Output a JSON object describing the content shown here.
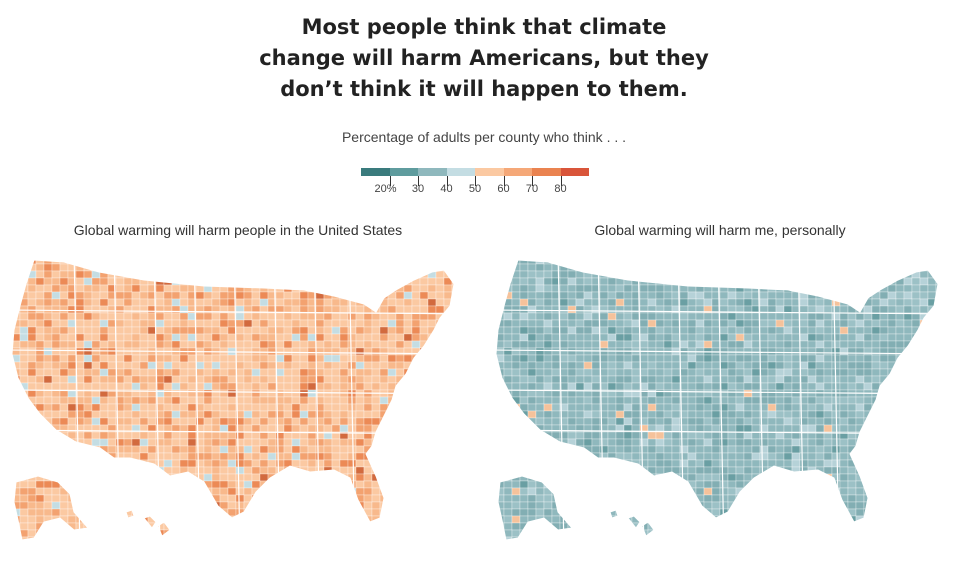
{
  "header": {
    "title_lines": [
      "Most people think that climate",
      "change will harm Americans, but they",
      "don’t think it will happen to them."
    ],
    "subtitle": "Percentage of adults per county who think . . ."
  },
  "legend": {
    "colors": [
      "#3a7b7d",
      "#5f9c9e",
      "#8fb8bd",
      "#c4dde3",
      "#fbc9a2",
      "#f5a878",
      "#ea8350",
      "#d9553a"
    ],
    "tick_labels": [
      "20%",
      "30",
      "40",
      "50",
      "60",
      "70",
      "80"
    ]
  },
  "maps": [
    {
      "title": "Global warming will harm people in the United States",
      "palette": [
        "#fbc9a2",
        "#f8b98c",
        "#f3a270",
        "#ec8a56",
        "#c4dde3",
        "#d26a3e"
      ],
      "base": "#f9c199"
    },
    {
      "title": "Global warming will harm me, personally",
      "palette": [
        "#8fb8bd",
        "#82aeb3",
        "#9cc1c6",
        "#b6d2d8",
        "#6a9fa3",
        "#f5c29b"
      ],
      "base": "#8db6bb"
    }
  ]
}
